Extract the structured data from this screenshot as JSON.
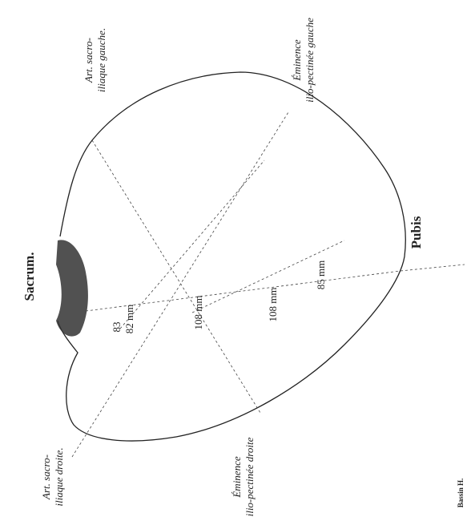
{
  "labels": {
    "sacrum": "Sacrum.",
    "pubis": "Pubis",
    "art_gauche": [
      "Art. sacro-",
      "iliaque gauche."
    ],
    "eminence_gauche": [
      "Éminence",
      "ilio-pectinée gauche"
    ],
    "art_droite": [
      "Art. sacro-",
      "iliaque droite."
    ],
    "eminence_droite": [
      "Éminence",
      "ilio-pectinée droite"
    ],
    "caption": "Bassin H."
  },
  "measurements": [
    "83",
    "82 mm",
    "108 mm",
    "108 mm",
    "85 mm"
  ]
}
